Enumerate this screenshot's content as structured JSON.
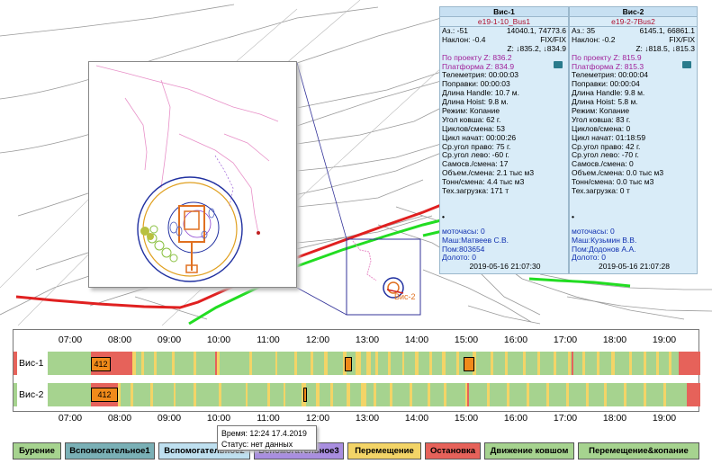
{
  "colors": {
    "digging": "#a6d38f",
    "idle": "#f3d467",
    "stop": "#e6625a",
    "aux1": "#7ab0b6",
    "aux2": "#bfe0f0",
    "aux3": "#a98ee0",
    "move": "#f3d467",
    "marker": "#f08a1a"
  },
  "panels": [
    {
      "title": "Вис-1",
      "subtitle": "e19-1-10_Bus1",
      "az_label": "Аз.: -51",
      "az_value": "14040.1, 74773.6",
      "tilt_label": "Наклон: -0.4",
      "tilt_value": "FIX/FIX",
      "z_value": "Z: ↓835.2, ↓834.9",
      "proj_z": "По проекту Z: 836.2",
      "platform_z": "Платформа Z: 834.9",
      "lines": [
        "Телеметрия: 00:00:03",
        "Поправки: 00:00:03",
        "Длина Handle: 10.7 м.",
        "Длина Hoist: 9.8 м.",
        "Режим: Копание",
        "Угол ковша: 62 г.",
        "Циклов/смена: 53",
        "Цикл начат: 00:00:26",
        "Ср.угол право: 75 г.",
        "Ср.угол лево: -60 г.",
        "Самосв./смена: 17",
        "Объем./смена: 2.1 тыс м3",
        "Тонн/смена: 4.4 тыс м3",
        "Тех.загрузка: 171 т"
      ],
      "bullet": "•",
      "moto": "моточасы: 0",
      "operator": "Маш:Матвеев С.В.",
      "helper": "Пом:803654",
      "bit": "Долото: 0",
      "timestamp": "2019-05-16 21:07:30"
    },
    {
      "title": "Вис-2",
      "subtitle": "e19-2-7Bus2",
      "az_label": "Аз.: 35",
      "az_value": "6145.1, 66861.1",
      "tilt_label": "Наклон: -0.2",
      "tilt_value": "FIX/FIX",
      "z_value": "Z: ↓818.5, ↓815.3",
      "proj_z": "По проекту Z: 815.9",
      "platform_z": "Платформа Z: 815.3",
      "lines": [
        "Телеметрия: 00:00:04",
        "Поправки: 00:00:04",
        "Длина Handle: 9.8 м.",
        "Длина Hoist: 5.8 м.",
        "Режим: Копание",
        "Угол ковша: 83 г.",
        "Циклов/смена: 0",
        "Цикл начат: 01:18:59",
        "Ср.угол право: 42 г.",
        "Ср.угол лево: -70 г.",
        "Самосв./смена: 0",
        "Объем./смена: 0.0 тыс м3",
        "Тонн/смена: 0.0 тыс м3",
        "Тех.загрузка: 0 т"
      ],
      "bullet": "•",
      "moto": "моточасы: 0",
      "operator": "Маш:Кузьмин В.В.",
      "helper": "Пом:Додонов А.А.",
      "bit": "Долото: 0",
      "timestamp": "2019-05-16 21:07:28"
    }
  ],
  "map": {
    "label_small": "Вис-2"
  },
  "timeline": {
    "hours": [
      "07:00",
      "08:00",
      "09:00",
      "10:00",
      "11:00",
      "12:00",
      "13:00",
      "14:00",
      "15:00",
      "16:00",
      "17:00",
      "18:00",
      "19:00"
    ],
    "lanes": [
      {
        "label": "Вис-1",
        "flag": "stop",
        "marker_labels": [
          "412",
          "",
          ""
        ]
      },
      {
        "label": "Вис-2",
        "flag": "digging",
        "marker_labels": [
          "412",
          ""
        ]
      }
    ]
  },
  "tooltip": {
    "line1": "Время: 12:24 17.4.2019",
    "line2": "Статус: нет данных"
  },
  "legend": [
    {
      "label": "Бурение",
      "color": "#a6d38f"
    },
    {
      "label": "Вспомогательное1",
      "color": "#7ab0b6"
    },
    {
      "label": "Вспомогательное2",
      "color": "#bfe0f0"
    },
    {
      "label": "Вспомогательное3",
      "color": "#a98ee0"
    },
    {
      "label": "Перемещение",
      "color": "#f3d467"
    },
    {
      "label": "Остановка",
      "color": "#e6625a"
    },
    {
      "label": "Движение ковшом",
      "color": "#a6d38f"
    },
    {
      "label": "Перемещение&копание",
      "color": "#a6d38f"
    }
  ]
}
